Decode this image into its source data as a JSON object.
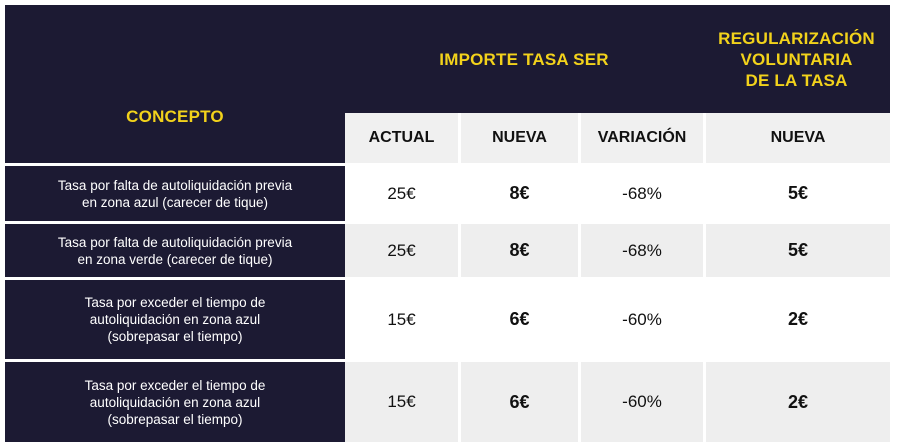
{
  "header": {
    "concepto": "CONCEPTO",
    "importe": "IMPORTE TASA SER",
    "regularizacion_line1": "REGULARIZACIÓN",
    "regularizacion_line2": "VOLUNTARIA",
    "regularizacion_line3": "DE LA TASA",
    "actual": "ACTUAL",
    "nueva": "NUEVA",
    "variacion": "VARIACIÓN",
    "nueva_reg": "NUEVA"
  },
  "rows": [
    {
      "concepto_line1": "Tasa por falta de autoliquidación previa",
      "concepto_line2": "en zona azul (carecer de tique)",
      "concepto_line3": "",
      "actual": "25€",
      "nueva": "8€",
      "variacion": "-68%",
      "regularizacion": "5€"
    },
    {
      "concepto_line1": "Tasa por falta de autoliquidación previa",
      "concepto_line2": "en zona verde (carecer de tique)",
      "concepto_line3": "",
      "actual": "25€",
      "nueva": "8€",
      "variacion": "-68%",
      "regularizacion": "5€"
    },
    {
      "concepto_line1": "Tasa por exceder el tiempo de",
      "concepto_line2": "autoliquidación en zona azul",
      "concepto_line3": "(sobrepasar el tiempo)",
      "actual": "15€",
      "nueva": "6€",
      "variacion": "-60%",
      "regularizacion": "2€"
    },
    {
      "concepto_line1": "Tasa por exceder el tiempo de",
      "concepto_line2": "autoliquidación en zona azul",
      "concepto_line3": "(sobrepasar el tiempo)",
      "actual": "15€",
      "nueva": "6€",
      "variacion": "-60%",
      "regularizacion": "2€"
    }
  ],
  "colors": {
    "header_bg": "#1c1a33",
    "header_text": "#f2d21b",
    "subheader_bg": "#f0f0f0",
    "row_alt_bg": "#eeeeee"
  }
}
